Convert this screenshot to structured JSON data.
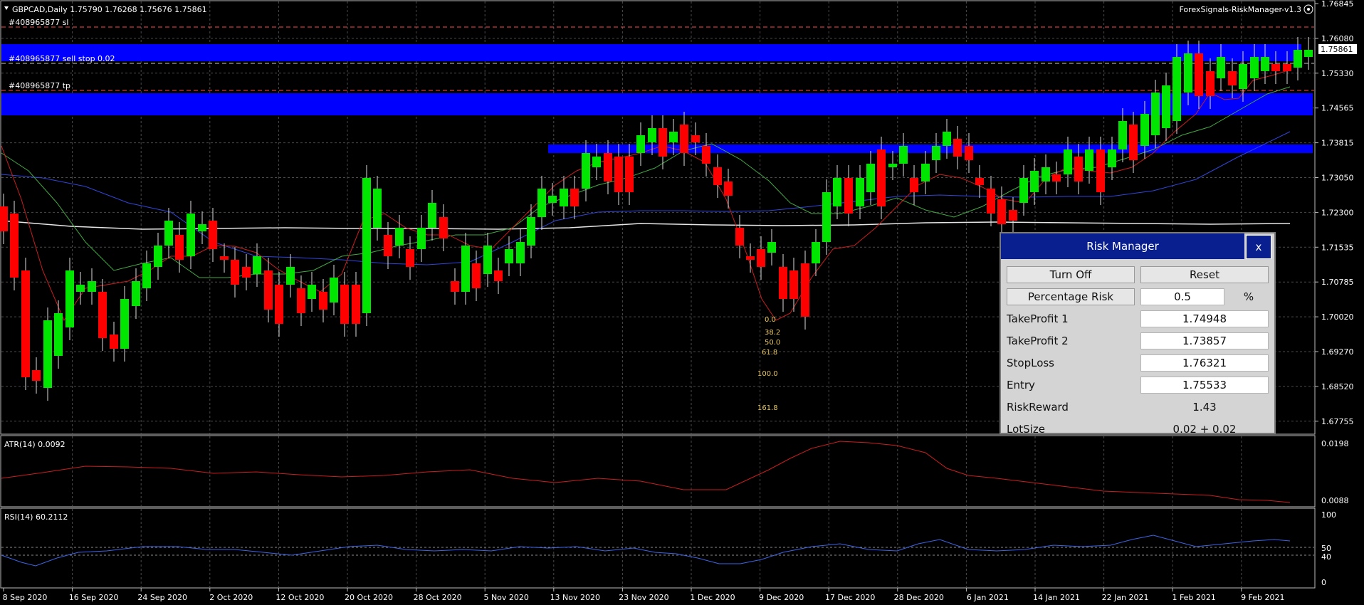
{
  "header": {
    "symbol_info": "GBPCAD,Daily  1.75790 1.76268 1.75676 1.75861",
    "indicator_name": "ForexSignals-RiskManager-v1.3",
    "settings_icon": "settings-circle-icon"
  },
  "price_axis": {
    "labels": [
      "1.76845",
      "1.76080",
      "1.75330",
      "1.74565",
      "1.73815",
      "1.73050",
      "1.72300",
      "1.71535",
      "1.70785",
      "1.70020",
      "1.69270",
      "1.68520",
      "1.67755"
    ],
    "current_price": "1.75861"
  },
  "order_lines": {
    "sl_label": "#408965877 sl",
    "entry_label": "#408965877 sell stop 0.02",
    "tp_label": "#408965877 tp"
  },
  "fib_labels": [
    "0.0",
    "38.2",
    "50.0",
    "61.8",
    "100.0",
    "161.8"
  ],
  "atr": {
    "label": "ATR(14) 0.0092",
    "axis_top": "0.0198",
    "axis_bottom": "0.0088"
  },
  "rsi": {
    "label": "RSI(14) 60.2112",
    "axis": [
      "100",
      "50",
      "40",
      "0"
    ]
  },
  "time_axis": [
    "8 Sep 2020",
    "16 Sep 2020",
    "24 Sep 2020",
    "2 Oct 2020",
    "12 Oct 2020",
    "20 Oct 2020",
    "28 Oct 2020",
    "5 Nov 2020",
    "13 Nov 2020",
    "23 Nov 2020",
    "1 Dec 2020",
    "9 Dec 2020",
    "17 Dec 2020",
    "28 Dec 2020",
    "6 Jan 2021",
    "14 Jan 2021",
    "22 Jan 2021",
    "1 Feb 2021",
    "9 Feb 2021"
  ],
  "risk_manager": {
    "title": "Risk Manager",
    "close_label": "x",
    "turn_off_label": "Turn Off",
    "reset_label": "Reset",
    "percentage_risk_label": "Percentage Risk",
    "percentage_risk_value": "0.5",
    "percent_symbol": "%",
    "take_profit_1_label": "TakeProfit 1",
    "take_profit_1_value": "1.74948",
    "take_profit_2_label": "TakeProfit 2",
    "take_profit_2_value": "1.73857",
    "stop_loss_label": "StopLoss",
    "stop_loss_value": "1.76321",
    "entry_label": "Entry",
    "entry_value": "1.75533",
    "risk_reward_label": "RiskReward",
    "risk_reward_value": "1.43",
    "lot_size_label": "LotSize",
    "lot_size_value": "0.02 + 0.02"
  },
  "colors": {
    "background": "#000000",
    "bull_candle": "#00e600",
    "bear_candle": "#ff0000",
    "zone": "#0000ff",
    "grid": "#4a4a4a",
    "panel_title": "#0a1f8f"
  }
}
